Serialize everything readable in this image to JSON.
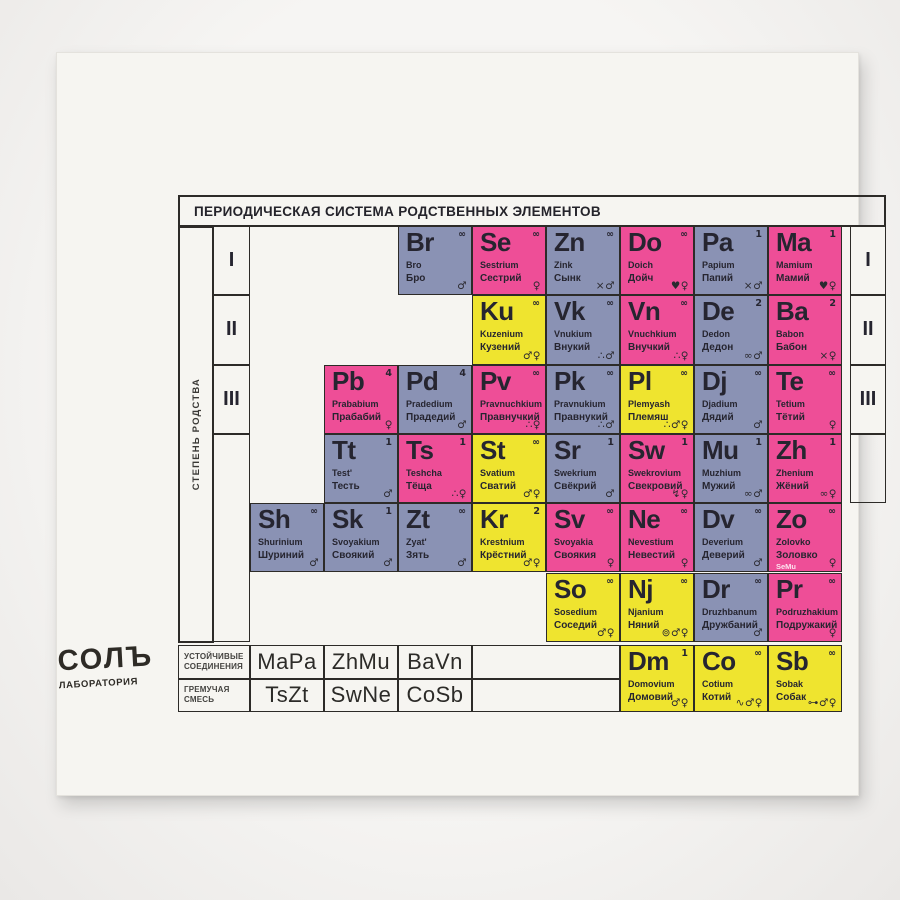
{
  "poster": {
    "title": "ПЕРИОДИЧЕСКАЯ СИСТЕМА РОДСТВЕННЫХ ЭЛЕМЕНТОВ",
    "left_axis_label": "СТЕПЕНЬ РОДСТВА",
    "row_numerals": [
      "I",
      "II",
      "III"
    ],
    "colors": {
      "pink": "#ee4e97",
      "blue": "#8a92b4",
      "yellow": "#efe42f",
      "border": "#2d2b28",
      "ink": "#262530",
      "card": "#f6f5f1"
    },
    "elements": [
      {
        "symbol": "Br",
        "mass": "∞",
        "latin": "Bro",
        "russian": "Бро",
        "color": "blue",
        "col": 3,
        "row": 1,
        "icon_names": [
          "male-icon"
        ],
        "glyphs": "♂"
      },
      {
        "symbol": "Se",
        "mass": "∞",
        "latin": "Sestrium",
        "russian": "Сестрий",
        "color": "pink",
        "col": 4,
        "row": 1,
        "icon_names": [
          "female-icon"
        ],
        "glyphs": "♀"
      },
      {
        "symbol": "Zn",
        "mass": "∞",
        "latin": "Zink",
        "russian": "Сынк",
        "color": "blue",
        "col": 5,
        "row": 1,
        "icon_names": [
          "crossed-tools-icon",
          "male-icon"
        ],
        "glyphs": "×♂"
      },
      {
        "symbol": "Do",
        "mass": "∞",
        "latin": "Doich",
        "russian": "Дойч",
        "color": "pink",
        "col": 6,
        "row": 1,
        "icon_names": [
          "hearts-icon",
          "female-icon"
        ],
        "glyphs": "♥♀"
      },
      {
        "symbol": "Pa",
        "mass": "1",
        "latin": "Papium",
        "russian": "Папий",
        "color": "blue",
        "col": 7,
        "row": 1,
        "icon_names": [
          "crossed-tools-icon",
          "male-icon"
        ],
        "glyphs": "×♂"
      },
      {
        "symbol": "Ma",
        "mass": "1",
        "latin": "Mamium",
        "russian": "Мамий",
        "color": "pink",
        "col": 8,
        "row": 1,
        "icon_names": [
          "hearts-icon",
          "female-icon"
        ],
        "glyphs": "♥♀"
      },
      {
        "symbol": "Ku",
        "mass": "∞",
        "latin": "Kuzenium",
        "russian": "Кузений",
        "color": "yellow",
        "col": 4,
        "row": 2,
        "icon_names": [
          "male-icon",
          "female-icon"
        ],
        "glyphs": "♂♀"
      },
      {
        "symbol": "Vk",
        "mass": "∞",
        "latin": "Vnukium",
        "russian": "Внукий",
        "color": "blue",
        "col": 5,
        "row": 2,
        "icon_names": [
          "offspring-icon",
          "male-icon"
        ],
        "glyphs": "∴♂"
      },
      {
        "symbol": "Vn",
        "mass": "∞",
        "latin": "Vnuchkium",
        "russian": "Внучкий",
        "color": "pink",
        "col": 6,
        "row": 2,
        "icon_names": [
          "offspring-icon",
          "female-icon"
        ],
        "glyphs": "∴♀"
      },
      {
        "symbol": "De",
        "mass": "2",
        "latin": "Dedon",
        "russian": "Дедон",
        "color": "blue",
        "col": 7,
        "row": 2,
        "icon_names": [
          "glasses-icon",
          "male-icon"
        ],
        "glyphs": "∞♂"
      },
      {
        "symbol": "Ba",
        "mass": "2",
        "latin": "Babon",
        "russian": "Бабон",
        "color": "pink",
        "col": 8,
        "row": 2,
        "icon_names": [
          "knitting-icon",
          "female-icon"
        ],
        "glyphs": "×♀"
      },
      {
        "symbol": "Pb",
        "mass": "4",
        "latin": "Prababium",
        "russian": "Прабабий",
        "color": "pink",
        "col": 2,
        "row": 3,
        "icon_names": [
          "female-icon"
        ],
        "glyphs": "♀"
      },
      {
        "symbol": "Pd",
        "mass": "4",
        "latin": "Pradedium",
        "russian": "Прадедий",
        "color": "blue",
        "col": 3,
        "row": 3,
        "icon_names": [
          "male-icon"
        ],
        "glyphs": "♂"
      },
      {
        "symbol": "Pv",
        "mass": "∞",
        "latin": "Pravnuchkium",
        "russian": "Правнучкий",
        "color": "pink",
        "col": 4,
        "row": 3,
        "icon_names": [
          "offspring-icon",
          "female-icon"
        ],
        "glyphs": "∴♀"
      },
      {
        "symbol": "Pk",
        "mass": "∞",
        "latin": "Pravnukium",
        "russian": "Правнукий",
        "color": "blue",
        "col": 5,
        "row": 3,
        "icon_names": [
          "offspring-icon",
          "male-icon"
        ],
        "glyphs": "∴♂"
      },
      {
        "symbol": "Pl",
        "mass": "∞",
        "latin": "Plemyash",
        "russian": "Племяш",
        "color": "yellow",
        "col": 6,
        "row": 3,
        "icon_names": [
          "offspring-icon",
          "male-icon",
          "female-icon"
        ],
        "glyphs": "∴♂♀"
      },
      {
        "symbol": "Dj",
        "mass": "∞",
        "latin": "Djadium",
        "russian": "Дядий",
        "color": "blue",
        "col": 7,
        "row": 3,
        "icon_names": [
          "male-icon"
        ],
        "glyphs": "♂"
      },
      {
        "symbol": "Te",
        "mass": "∞",
        "latin": "Tetium",
        "russian": "Тётий",
        "color": "pink",
        "col": 8,
        "row": 3,
        "icon_names": [
          "female-icon"
        ],
        "glyphs": "♀"
      },
      {
        "symbol": "Tt",
        "mass": "1",
        "latin": "Test'",
        "russian": "Тесть",
        "color": "blue",
        "col": 2,
        "row": 4,
        "icon_names": [
          "male-icon"
        ],
        "glyphs": "♂"
      },
      {
        "symbol": "Ts",
        "mass": "1",
        "latin": "Teshcha",
        "russian": "Тёща",
        "color": "pink",
        "col": 3,
        "row": 4,
        "icon_names": [
          "offspring-icon",
          "female-icon"
        ],
        "glyphs": "∴♀"
      },
      {
        "symbol": "St",
        "mass": "∞",
        "latin": "Svatium",
        "russian": "Сватий",
        "color": "yellow",
        "col": 4,
        "row": 4,
        "icon_names": [
          "male-icon",
          "female-icon"
        ],
        "glyphs": "♂♀"
      },
      {
        "symbol": "Sr",
        "mass": "1",
        "latin": "Swekrium",
        "russian": "Свёкрий",
        "color": "blue",
        "col": 5,
        "row": 4,
        "icon_names": [
          "male-icon"
        ],
        "glyphs": "♂"
      },
      {
        "symbol": "Sw",
        "mass": "1",
        "latin": "Swekrovium",
        "russian": "Свекровий",
        "color": "pink",
        "col": 6,
        "row": 4,
        "icon_names": [
          "lightning-icon",
          "female-icon"
        ],
        "glyphs": "↯♀"
      },
      {
        "symbol": "Mu",
        "mass": "1",
        "latin": "Muzhium",
        "russian": "Мужий",
        "color": "blue",
        "col": 7,
        "row": 4,
        "icon_names": [
          "wedding-rings-icon",
          "male-icon"
        ],
        "glyphs": "∞♂"
      },
      {
        "symbol": "Zh",
        "mass": "1",
        "latin": "Zhenium",
        "russian": "Жёний",
        "color": "pink",
        "col": 8,
        "row": 4,
        "icon_names": [
          "wedding-rings-icon",
          "female-icon"
        ],
        "glyphs": "∞♀"
      },
      {
        "symbol": "Sh",
        "mass": "∞",
        "latin": "Shurinium",
        "russian": "Шуриний",
        "color": "blue",
        "col": 1,
        "row": 5,
        "icon_names": [
          "male-icon"
        ],
        "glyphs": "♂"
      },
      {
        "symbol": "Sk",
        "mass": "1",
        "latin": "Svoyakium",
        "russian": "Своякий",
        "color": "blue",
        "col": 2,
        "row": 5,
        "icon_names": [
          "male-icon"
        ],
        "glyphs": "♂"
      },
      {
        "symbol": "Zt",
        "mass": "∞",
        "latin": "Zyat'",
        "russian": "Зять",
        "color": "blue",
        "col": 3,
        "row": 5,
        "icon_names": [
          "male-icon"
        ],
        "glyphs": "♂"
      },
      {
        "symbol": "Kr",
        "mass": "2",
        "latin": "Krestnium",
        "russian": "Крёстний",
        "color": "yellow",
        "col": 4,
        "row": 5,
        "icon_names": [
          "male-icon",
          "female-icon"
        ],
        "glyphs": "♂♀"
      },
      {
        "symbol": "Sv",
        "mass": "∞",
        "latin": "Svoyakia",
        "russian": "Своякия",
        "color": "pink",
        "col": 5,
        "row": 5,
        "icon_names": [
          "female-icon"
        ],
        "glyphs": "♀"
      },
      {
        "symbol": "Ne",
        "mass": "∞",
        "latin": "Nevestium",
        "russian": "Невестий",
        "color": "pink",
        "col": 6,
        "row": 5,
        "icon_names": [
          "female-icon"
        ],
        "glyphs": "♀"
      },
      {
        "symbol": "Dv",
        "mass": "∞",
        "latin": "Deverium",
        "russian": "Деверий",
        "color": "blue",
        "col": 7,
        "row": 5,
        "icon_names": [
          "male-icon"
        ],
        "glyphs": "♂"
      },
      {
        "symbol": "Zo",
        "mass": "∞",
        "latin": "Zolovko",
        "russian": "Золовко",
        "note": "SeMu",
        "color": "pink",
        "col": 8,
        "row": 5,
        "icon_names": [
          "female-icon"
        ],
        "glyphs": "♀"
      },
      {
        "symbol": "So",
        "mass": "∞",
        "latin": "Sosedium",
        "russian": "Соседий",
        "color": "yellow",
        "col": 5,
        "row": 6,
        "icon_names": [
          "male-icon",
          "female-icon"
        ],
        "glyphs": "♂♀"
      },
      {
        "symbol": "Nj",
        "mass": "∞",
        "latin": "Njanium",
        "russian": "Няний",
        "color": "yellow",
        "col": 6,
        "row": 6,
        "icon_names": [
          "pacifier-icon",
          "male-icon",
          "female-icon"
        ],
        "glyphs": "⊚♂♀"
      },
      {
        "symbol": "Dr",
        "mass": "∞",
        "latin": "Druzhbanum",
        "russian": "Дружбаний",
        "color": "blue",
        "col": 7,
        "row": 6,
        "icon_names": [
          "male-icon"
        ],
        "glyphs": "♂"
      },
      {
        "symbol": "Pr",
        "mass": "∞",
        "latin": "Podruzhakium",
        "russian": "Подружакий",
        "color": "pink",
        "col": 8,
        "row": 6,
        "icon_names": [
          "female-icon"
        ],
        "glyphs": "♀"
      },
      {
        "symbol": "Dm",
        "mass": "1",
        "latin": "Domovium",
        "russian": "Домовий",
        "color": "yellow",
        "col": 6,
        "row": 7,
        "icon_names": [
          "male-icon",
          "female-icon"
        ],
        "glyphs": "♂♀"
      },
      {
        "symbol": "Co",
        "mass": "∞",
        "latin": "Cotium",
        "russian": "Котий",
        "color": "yellow",
        "col": 7,
        "row": 7,
        "icon_names": [
          "mouse-icon",
          "male-icon",
          "female-icon"
        ],
        "glyphs": "∿♂♀"
      },
      {
        "symbol": "Sb",
        "mass": "∞",
        "latin": "Sobak",
        "russian": "Собак",
        "color": "yellow",
        "col": 8,
        "row": 7,
        "icon_names": [
          "bone-icon",
          "male-icon",
          "female-icon"
        ],
        "glyphs": "⊶♂♀"
      }
    ],
    "legend": {
      "rows": [
        {
          "label": "УСТОЙЧИВЫЕ\nСОЕДИНЕНИЯ",
          "compounds": [
            "MaPa",
            "ZhMu",
            "BaVn"
          ]
        },
        {
          "label": "ГРЕМУЧАЯ\nСМЕСЬ",
          "compounds": [
            "TsZt",
            "SwNe",
            "CoSb"
          ]
        }
      ]
    },
    "logo": {
      "line1": "СОЛЪ",
      "line2": "ЛАБОРАТОРИЯ"
    }
  }
}
